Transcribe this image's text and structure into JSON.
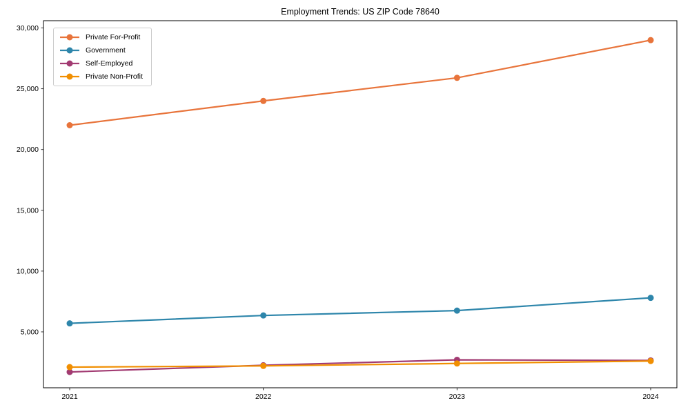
{
  "chart_data": {
    "type": "line",
    "title": "Employment Trends: US ZIP Code 78640",
    "categories": [
      "2021",
      "2022",
      "2023",
      "2024"
    ],
    "series": [
      {
        "name": "Private For-Profit",
        "color": "#e8743b",
        "values": [
          22000,
          24000,
          25900,
          29000
        ]
      },
      {
        "name": "Government",
        "color": "#2e86ab",
        "values": [
          5700,
          6350,
          6750,
          7800
        ]
      },
      {
        "name": "Self-Employed",
        "color": "#a23b72",
        "values": [
          1700,
          2250,
          2700,
          2650
        ]
      },
      {
        "name": "Private Non-Profit",
        "color": "#f18f01",
        "values": [
          2100,
          2200,
          2400,
          2600
        ]
      }
    ],
    "yticks": [
      5000,
      10000,
      15000,
      20000,
      25000,
      30000
    ],
    "ylim": [
      400,
      30600
    ],
    "xlabel": "",
    "ylabel": "",
    "grid": false,
    "legend_position": "upper-left",
    "axis_color": "#000000",
    "background_color": "#ffffff"
  }
}
